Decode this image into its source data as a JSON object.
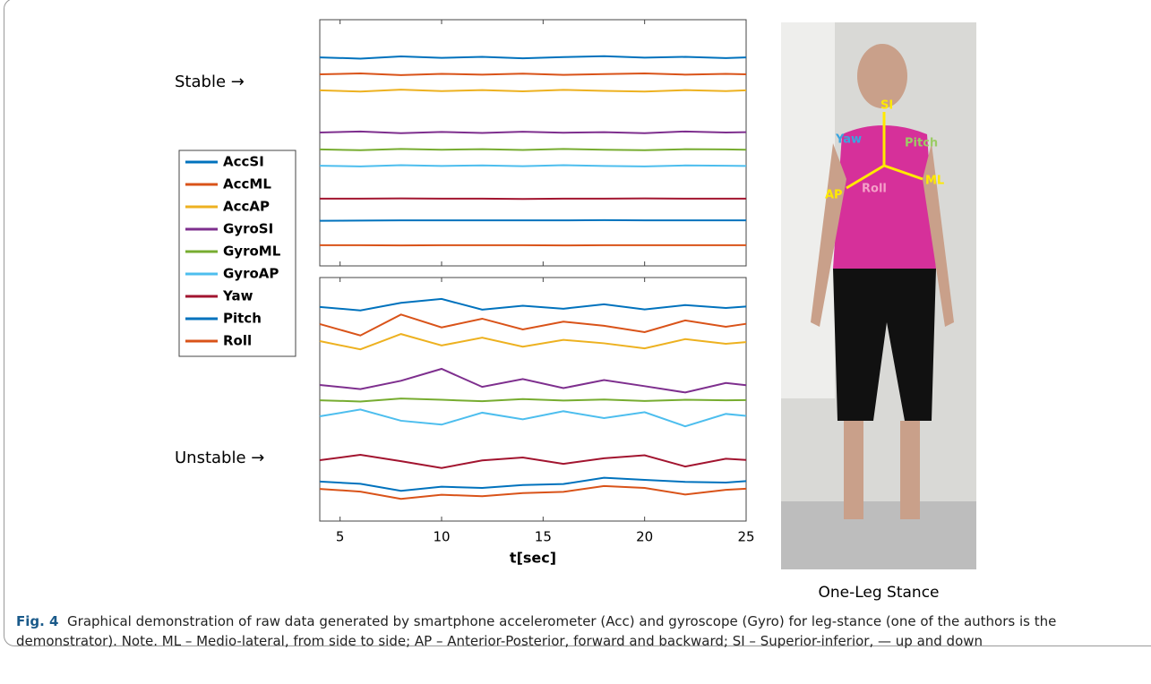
{
  "chart_data": [
    {
      "type": "line",
      "annotation": "Stable →",
      "x": [
        4,
        6,
        8,
        10,
        12,
        14,
        16,
        18,
        20,
        22,
        24,
        25
      ],
      "xlim": [
        4,
        25
      ],
      "xticks": [
        5,
        10,
        15,
        20,
        25
      ],
      "ylim": [
        0,
        100
      ],
      "series": [
        {
          "name": "AccSI",
          "color": "#0072BD",
          "values": [
            84.7,
            84.2,
            85.1,
            84.5,
            84.9,
            84.3,
            84.8,
            85.2,
            84.6,
            84.9,
            84.4,
            84.7
          ]
        },
        {
          "name": "AccML",
          "color": "#D95319",
          "values": [
            77.8,
            78.2,
            77.5,
            78.0,
            77.7,
            78.1,
            77.6,
            77.9,
            78.2,
            77.7,
            78.0,
            77.8
          ]
        },
        {
          "name": "AccAP",
          "color": "#EDB120",
          "values": [
            71.3,
            70.8,
            71.6,
            71.0,
            71.4,
            70.9,
            71.5,
            71.1,
            70.8,
            71.4,
            71.0,
            71.3
          ]
        },
        {
          "name": "GyroSI",
          "color": "#7E2F8E",
          "values": [
            54.2,
            54.6,
            53.9,
            54.4,
            54.0,
            54.5,
            54.1,
            54.3,
            53.9,
            54.6,
            54.2,
            54.3
          ]
        },
        {
          "name": "GyroML",
          "color": "#77AC30",
          "values": [
            47.3,
            47.0,
            47.5,
            47.2,
            47.4,
            47.1,
            47.5,
            47.2,
            47.0,
            47.4,
            47.3,
            47.2
          ]
        },
        {
          "name": "GyroAP",
          "color": "#4DBEEE",
          "values": [
            40.7,
            40.4,
            40.9,
            40.6,
            40.8,
            40.5,
            40.9,
            40.6,
            40.4,
            40.8,
            40.7,
            40.6
          ]
        },
        {
          "name": "Yaw",
          "color": "#A2142F",
          "values": [
            27.3,
            27.3,
            27.4,
            27.3,
            27.3,
            27.2,
            27.3,
            27.3,
            27.4,
            27.3,
            27.3,
            27.3
          ]
        },
        {
          "name": "Pitch",
          "color": "#0072BD",
          "values": [
            18.3,
            18.4,
            18.5,
            18.5,
            18.5,
            18.5,
            18.5,
            18.6,
            18.5,
            18.5,
            18.5,
            18.5
          ]
        },
        {
          "name": "Roll",
          "color": "#D95319",
          "values": [
            8.4,
            8.4,
            8.3,
            8.4,
            8.4,
            8.4,
            8.3,
            8.4,
            8.4,
            8.4,
            8.4,
            8.4
          ]
        }
      ]
    },
    {
      "type": "line",
      "annotation": "Unstable →",
      "xlabel": "t[sec]",
      "x": [
        4,
        6,
        8,
        10,
        12,
        14,
        16,
        18,
        20,
        22,
        24,
        25
      ],
      "xlim": [
        4,
        25
      ],
      "xticks": [
        5,
        10,
        15,
        20,
        25
      ],
      "ylim": [
        0,
        100
      ],
      "series": [
        {
          "color": "#0072BD",
          "values": [
            87.9,
            86.5,
            89.6,
            91.2,
            86.8,
            88.4,
            87.2,
            89.0,
            86.9,
            88.7,
            87.5,
            88.1
          ]
        },
        {
          "color": "#D95319",
          "values": [
            80.9,
            76.2,
            84.8,
            79.5,
            83.1,
            78.7,
            81.9,
            80.2,
            77.6,
            82.4,
            79.8,
            81.0
          ]
        },
        {
          "color": "#EDB120",
          "values": [
            73.9,
            70.5,
            76.8,
            72.1,
            75.3,
            71.6,
            74.4,
            73.0,
            70.9,
            74.7,
            72.8,
            73.5
          ]
        },
        {
          "color": "#7E2F8E",
          "values": [
            55.9,
            54.2,
            57.6,
            62.5,
            55.1,
            58.3,
            54.6,
            57.9,
            55.4,
            52.8,
            56.7,
            55.8
          ]
        },
        {
          "color": "#77AC30",
          "values": [
            49.6,
            49.1,
            50.3,
            49.8,
            49.2,
            50.1,
            49.5,
            49.9,
            49.3,
            49.8,
            49.6,
            49.7
          ]
        },
        {
          "color": "#4DBEEE",
          "values": [
            43.0,
            45.8,
            41.2,
            39.6,
            44.5,
            41.8,
            45.1,
            42.3,
            44.7,
            38.9,
            44.0,
            43.2
          ]
        },
        {
          "color": "#A2142F",
          "values": [
            25.0,
            27.2,
            24.6,
            21.8,
            24.9,
            26.1,
            23.5,
            25.8,
            27.0,
            22.4,
            25.6,
            25.1
          ]
        },
        {
          "color": "#0072BD",
          "values": [
            16.2,
            15.3,
            12.4,
            14.1,
            13.6,
            14.8,
            15.2,
            17.8,
            16.9,
            16.1,
            15.8,
            16.4
          ]
        },
        {
          "color": "#D95319",
          "values": [
            13.2,
            12.1,
            9.1,
            10.8,
            10.2,
            11.5,
            12.0,
            14.4,
            13.6,
            10.9,
            12.8,
            13.3
          ]
        }
      ]
    }
  ],
  "photo": {
    "labels": {
      "si": "SI",
      "yaw": "Yaw",
      "pitch": "Pitch",
      "ap": "AP",
      "roll": "Roll",
      "ml": "ML"
    },
    "caption": "One-Leg Stance"
  },
  "caption": {
    "label": "Fig. 4",
    "text": "Graphical demonstration of raw data generated by smartphone accelerometer (Acc) and gyroscope (Gyro) for leg-stance (one of the authors is the demonstrator). Note. ML – Medio-lateral, from side to side; AP – Anterior-Posterior, forward and backward; SI – Superior-inferior, — up and down"
  }
}
